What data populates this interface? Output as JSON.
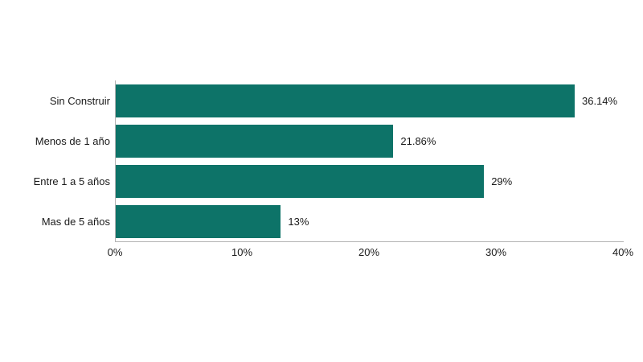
{
  "chart_data": {
    "type": "bar",
    "orientation": "horizontal",
    "title": "",
    "xlabel": "",
    "ylabel": "",
    "categories": [
      "Sin Construir",
      "Menos de 1 año",
      "Entre 1 a 5 años",
      "Mas de 5 años"
    ],
    "values": [
      36.14,
      21.86,
      29,
      13
    ],
    "value_labels": [
      "36.14%",
      "21.86%",
      "29%",
      "13%"
    ],
    "xlim": [
      0,
      40
    ],
    "x_ticks": [
      0,
      10,
      20,
      30,
      40
    ],
    "x_tick_labels": [
      "0%",
      "10%",
      "20%",
      "30%",
      "40%"
    ],
    "grid": false,
    "legend": false,
    "colors": {
      "bar": "#0d7368",
      "axis": "#b3b3b3",
      "text": "#1a1a1a",
      "background": "#ffffff"
    }
  }
}
